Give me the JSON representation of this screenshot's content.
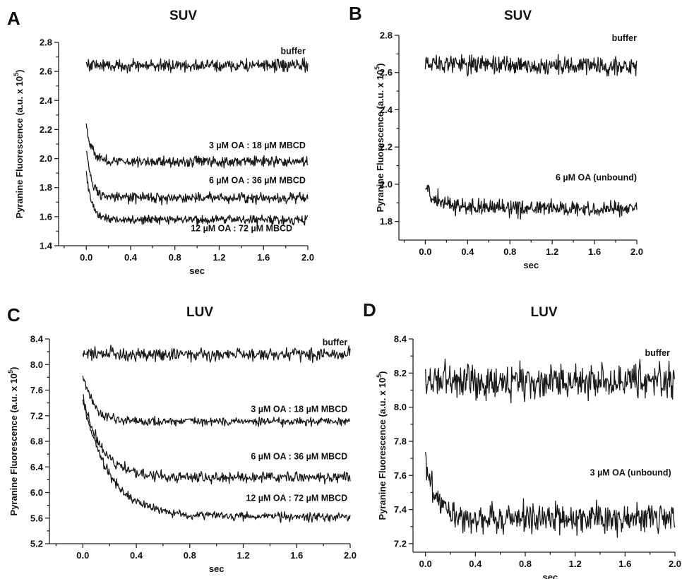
{
  "chart_data": [
    {
      "type": "line",
      "panel": "A",
      "title": "SUV",
      "xlabel": "sec",
      "ylabel": "Pyranine Fluorescence (a.u. x 10",
      "ylabel_exp": "5",
      "ylabel_close": ")",
      "xlim": [
        -0.25,
        2.0
      ],
      "ylim": [
        1.4,
        2.8
      ],
      "xticks": [
        0.0,
        0.4,
        0.8,
        1.2,
        1.6,
        2.0
      ],
      "xtick_labels": [
        "0.0",
        "0.4",
        "0.8",
        "1.2",
        "1.6",
        "2.0"
      ],
      "yticks": [
        1.4,
        1.6,
        1.8,
        2.0,
        2.2,
        2.4,
        2.6,
        2.8
      ],
      "ytick_labels": [
        "1.4",
        "1.6",
        "1.8",
        "2.0",
        "2.2",
        "2.4",
        "2.6",
        "2.8"
      ],
      "series": [
        {
          "name": "buffer",
          "start": 2.65,
          "plateau": 2.64,
          "tau": 0.1,
          "noise": 0.03,
          "label_x": 1.98,
          "label_y": 2.72
        },
        {
          "name": "3 µM OA : 18 µM MBCD",
          "start": 2.24,
          "plateau": 1.98,
          "tau": 0.05,
          "noise": 0.025,
          "label_x": 1.98,
          "label_y": 2.07
        },
        {
          "name": "6 µM OA : 36 µM MBCD",
          "start": 2.06,
          "plateau": 1.73,
          "tau": 0.05,
          "noise": 0.025,
          "label_x": 1.98,
          "label_y": 1.83
        },
        {
          "name": "12 µM OA : 72 µM MBCD",
          "start": 1.9,
          "plateau": 1.58,
          "tau": 0.05,
          "noise": 0.022,
          "label_x": 1.86,
          "label_y": 1.5
        }
      ]
    },
    {
      "type": "line",
      "panel": "B",
      "title": "SUV",
      "xlabel": "sec",
      "ylabel": "Pyranine Fluorescence (a.u. x 10",
      "ylabel_exp": "5",
      "ylabel_close": ")",
      "xlim": [
        -0.25,
        2.0
      ],
      "ylim": [
        1.7,
        2.8
      ],
      "xticks": [
        0.0,
        0.4,
        0.8,
        1.2,
        1.6,
        2.0
      ],
      "xtick_labels": [
        "0.0",
        "0.4",
        "0.8",
        "1.2",
        "1.6",
        "2.0"
      ],
      "yticks": [
        1.8,
        2.0,
        2.2,
        2.4,
        2.6,
        2.8
      ],
      "ytick_labels": [
        "1.8",
        "2.0",
        "2.2",
        "2.4",
        "2.6",
        "2.8"
      ],
      "series": [
        {
          "name": "buffer",
          "start": 2.66,
          "plateau": 2.63,
          "tau": 0.5,
          "noise": 0.035,
          "label_x": 2.0,
          "label_y": 2.77
        },
        {
          "name": "6 µM OA (unbound)",
          "start": 1.98,
          "plateau": 1.87,
          "tau": 0.15,
          "noise": 0.03,
          "label_x": 2.0,
          "label_y": 2.02
        }
      ]
    },
    {
      "type": "line",
      "panel": "C",
      "title": "LUV",
      "xlabel": "sec",
      "ylabel": "Pyranine Fluorescence (a.u. x 10",
      "ylabel_exp": "5",
      "ylabel_close": ")",
      "xlim": [
        -0.25,
        2.0
      ],
      "ylim": [
        5.2,
        8.4
      ],
      "xticks": [
        0.0,
        0.4,
        0.8,
        1.2,
        1.6,
        2.0
      ],
      "xtick_labels": [
        "0.0",
        "0.4",
        "0.8",
        "1.2",
        "1.6",
        "2.0"
      ],
      "yticks": [
        5.2,
        5.6,
        6.0,
        6.4,
        6.8,
        7.2,
        7.6,
        8.0,
        8.4
      ],
      "ytick_labels": [
        "5.2",
        "5.6",
        "6.0",
        "6.4",
        "6.8",
        "7.2",
        "7.6",
        "8.0",
        "8.4"
      ],
      "series": [
        {
          "name": "buffer",
          "start": 8.18,
          "plateau": 8.16,
          "tau": 0.1,
          "noise": 0.07,
          "label_x": 1.98,
          "label_y": 8.3
        },
        {
          "name": "3 µM OA : 18 µM MBCD",
          "start": 7.85,
          "plateau": 7.11,
          "tau": 0.08,
          "noise": 0.05,
          "label_x": 1.98,
          "label_y": 7.26
        },
        {
          "name": "6 µM OA : 36 µM MBCD",
          "start": 7.5,
          "plateau": 6.24,
          "tau": 0.14,
          "noise": 0.06,
          "label_x": 1.98,
          "label_y": 6.52
        },
        {
          "name": "12 µM OA : 72 µM MBCD",
          "start": 7.45,
          "plateau": 5.62,
          "tau": 0.2,
          "noise": 0.05,
          "label_x": 1.98,
          "label_y": 5.87
        }
      ]
    },
    {
      "type": "line",
      "panel": "D",
      "title": "LUV",
      "xlabel": "sec",
      "ylabel": "Pyranine Fluorescence (a.u. x 10",
      "ylabel_exp": "5",
      "ylabel_close": ")",
      "xlim": [
        -0.1,
        2.0
      ],
      "ylim": [
        7.15,
        8.4
      ],
      "xticks": [
        0.0,
        0.4,
        0.8,
        1.2,
        1.6,
        2.0
      ],
      "xtick_labels": [
        "0.0",
        "0.4",
        "0.8",
        "1.2",
        "1.6",
        "2.0"
      ],
      "yticks": [
        7.2,
        7.4,
        7.6,
        7.8,
        8.0,
        8.2,
        8.4
      ],
      "ytick_labels": [
        "7.2",
        "7.4",
        "7.6",
        "7.8",
        "8.0",
        "8.2",
        "8.4"
      ],
      "series": [
        {
          "name": "buffer",
          "start": 8.15,
          "plateau": 8.15,
          "tau": 0.1,
          "noise": 0.07,
          "label_x": 1.96,
          "label_y": 8.3
        },
        {
          "name": "3 µM OA (unbound)",
          "start": 7.7,
          "plateau": 7.35,
          "tau": 0.08,
          "noise": 0.06,
          "label_x": 1.97,
          "label_y": 7.6
        }
      ]
    }
  ]
}
